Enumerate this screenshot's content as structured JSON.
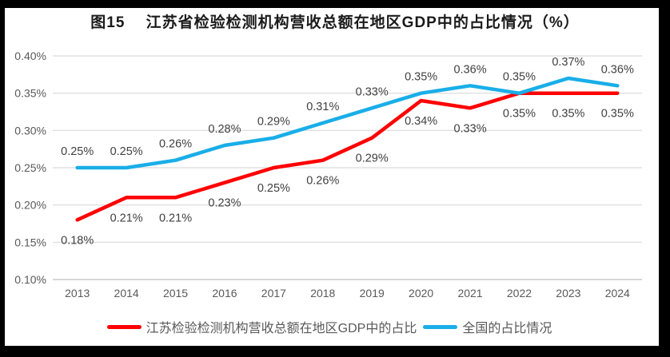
{
  "title": "图15　 江苏省检验检测机构营收总额在地区GDP中的占比情况（%）",
  "colors": {
    "jiangsu_line": "#FF0000",
    "national_line": "#19AEE8",
    "gridline": "#D9D9D9",
    "axis_line": "#BFBFBF",
    "tick_text": "#595959",
    "data_label_text": "#404040",
    "title_text": "#1A1A1A",
    "frame": "#000000",
    "background": "#FFFFFF"
  },
  "chart_data": {
    "type": "line",
    "title": "图15　 江苏省检验检测机构营收总额在地区GDP中的占比情况（%）",
    "xlabel": "",
    "ylabel": "",
    "categories": [
      "2013",
      "2014",
      "2015",
      "2016",
      "2017",
      "2018",
      "2019",
      "2020",
      "2021",
      "2022",
      "2023",
      "2024"
    ],
    "series": [
      {
        "name": "江苏检验检测机构营收总额在地区GDP中的占比",
        "color_key": "jiangsu_line",
        "values": [
          0.18,
          0.21,
          0.21,
          0.23,
          0.25,
          0.26,
          0.29,
          0.34,
          0.33,
          0.35,
          0.35,
          0.35
        ],
        "labels": [
          "0.18%",
          "0.21%",
          "0.21%",
          "0.23%",
          "0.25%",
          "0.26%",
          "0.29%",
          "0.34%",
          "0.33%",
          "0.35%",
          "0.35%",
          "0.35%"
        ],
        "label_position": "below"
      },
      {
        "name": "全国的占比情况",
        "color_key": "national_line",
        "values": [
          0.25,
          0.25,
          0.26,
          0.28,
          0.29,
          0.31,
          0.33,
          0.35,
          0.36,
          0.35,
          0.37,
          0.36
        ],
        "labels": [
          "0.25%",
          "0.25%",
          "0.26%",
          "0.28%",
          "0.29%",
          "0.31%",
          "0.33%",
          "0.35%",
          "0.36%",
          "0.35%",
          "0.37%",
          "0.36%"
        ],
        "label_position": "above"
      }
    ],
    "ylim": [
      0.1,
      0.4
    ],
    "ytick_step": 0.05,
    "ytick_labels": [
      "0.10%",
      "0.15%",
      "0.20%",
      "0.25%",
      "0.30%",
      "0.35%",
      "0.40%"
    ],
    "grid": true,
    "legend_position": "bottom"
  }
}
